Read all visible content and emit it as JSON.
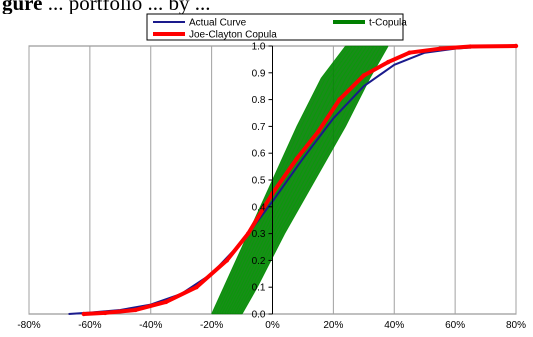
{
  "header": {
    "prefix": "gure",
    "caption": " ... portfolio ... by ... "
  },
  "chart_data": {
    "type": "line",
    "legend": {
      "placement": "top",
      "entries": [
        {
          "name": "Actual Curve",
          "color": "#1a1a8c"
        },
        {
          "name": "t-Copula",
          "color": "#008000"
        },
        {
          "name": "Joe-Clayton Copula",
          "color": "#ff0000"
        }
      ]
    },
    "xlabel": "",
    "ylabel": "",
    "xlim": [
      -0.8,
      0.8
    ],
    "ylim": [
      0.0,
      1.0
    ],
    "grid": "vertical",
    "x_ticks": [
      -0.8,
      -0.6,
      -0.4,
      -0.2,
      0.0,
      0.2,
      0.4,
      0.6,
      0.8
    ],
    "x_tick_labels": [
      "-80%",
      "-60%",
      "-40%",
      "-20%",
      "0%",
      "20%",
      "40%",
      "60%",
      "80%"
    ],
    "y_ticks": [
      0.0,
      0.1,
      0.2,
      0.3,
      0.4,
      0.5,
      0.6,
      0.7,
      0.8,
      0.9,
      1.0
    ],
    "y_tick_labels": [
      "0.0",
      "0.1",
      "0.2",
      "0.3",
      "0.4",
      "0.5",
      "0.6",
      "0.7",
      "0.8",
      "0.9",
      "1.0"
    ],
    "series": [
      {
        "name": "Actual Curve",
        "color": "#1a1a8c",
        "x": [
          -0.67,
          -0.6,
          -0.5,
          -0.4,
          -0.3,
          -0.2,
          -0.1,
          0.0,
          0.1,
          0.2,
          0.3,
          0.4,
          0.5,
          0.6,
          0.7,
          0.8
        ],
        "y": [
          0.0,
          0.005,
          0.015,
          0.035,
          0.075,
          0.15,
          0.27,
          0.42,
          0.58,
          0.73,
          0.85,
          0.93,
          0.975,
          0.99,
          0.998,
          1.0
        ]
      },
      {
        "name": "Joe-Clayton Copula",
        "color": "#ff0000",
        "x": [
          -0.62,
          -0.55,
          -0.45,
          -0.35,
          -0.25,
          -0.15,
          -0.08,
          0.0,
          0.08,
          0.15,
          0.22,
          0.3,
          0.38,
          0.45,
          0.55,
          0.65,
          0.8
        ],
        "y": [
          0.0,
          0.004,
          0.015,
          0.045,
          0.1,
          0.2,
          0.3,
          0.45,
          0.58,
          0.68,
          0.8,
          0.89,
          0.94,
          0.975,
          0.99,
          0.998,
          1.0
        ]
      },
      {
        "name": "t-Copula",
        "color": "#008000",
        "band_x_left": [
          -0.2,
          -0.16,
          -0.08,
          0.0,
          0.08,
          0.16,
          0.24
        ],
        "band_x_right": [
          -0.1,
          -0.05,
          0.04,
          0.14,
          0.24,
          0.32,
          0.38
        ],
        "band_y": [
          0.0,
          0.1,
          0.3,
          0.5,
          0.7,
          0.88,
          1.0
        ]
      }
    ]
  }
}
